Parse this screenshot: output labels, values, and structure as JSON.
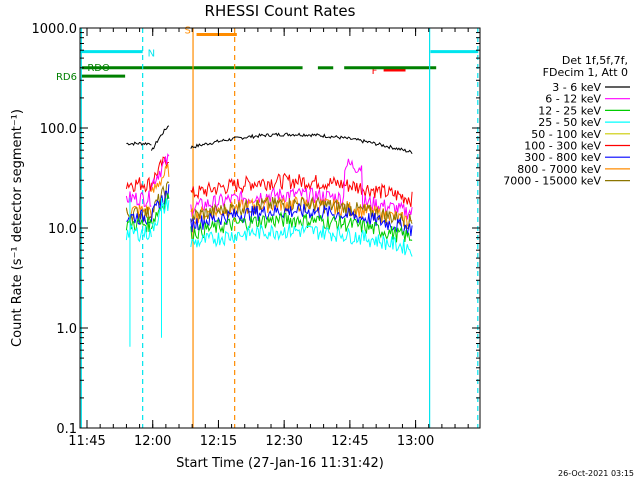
{
  "chart_data": {
    "type": "line",
    "title": "RHESSI Count Rates",
    "xlabel": "Start Time (27-Jan-16 11:31:42)",
    "ylabel": "Count Rate (s⁻¹ detector segment⁻¹)",
    "y_scale": "log",
    "ylim": [
      0.1,
      1000
    ],
    "xlim_minutes": [
      11.7,
      103.0
    ],
    "x_ticks": [
      {
        "label": "11:45",
        "minutes": 13.3
      },
      {
        "label": "12:00",
        "minutes": 28.3
      },
      {
        "label": "12:15",
        "minutes": 43.3
      },
      {
        "label": "12:30",
        "minutes": 58.3
      },
      {
        "label": "12:45",
        "minutes": 73.3
      },
      {
        "label": "13:00",
        "minutes": 88.3
      }
    ],
    "y_ticks": [
      {
        "label": "0.1",
        "value": 0.1
      },
      {
        "label": "1.0",
        "value": 1
      },
      {
        "label": "10.0",
        "value": 10
      },
      {
        "label": "100.0",
        "value": 100
      },
      {
        "label": "1000.0",
        "value": 1000
      }
    ],
    "legend": {
      "position": "right",
      "header": [
        "Det 1f,5f,7f,",
        "FDecim 1, Att 0"
      ],
      "entries": [
        {
          "label": "3 - 6 keV",
          "color": "#000000"
        },
        {
          "label": "6 - 12 keV",
          "color": "#ff00ff"
        },
        {
          "label": "12 - 25 keV",
          "color": "#00cc00"
        },
        {
          "label": "25 - 50 keV",
          "color": "#00ffff"
        },
        {
          "label": "50 - 100 keV",
          "color": "#cccc00"
        },
        {
          "label": "100 - 300 keV",
          "color": "#ff0000"
        },
        {
          "label": "300 - 800 keV",
          "color": "#0000ff"
        },
        {
          "label": "800 - 7000 keV",
          "color": "#ff8c00"
        },
        {
          "label": "7000 - 15000 keV",
          "color": "#8b7500"
        }
      ]
    },
    "segments_minutes": [
      [
        22.3,
        28.0
      ],
      [
        28.0,
        32.0
      ],
      [
        37.0,
        87.5
      ]
    ],
    "series": [
      {
        "color": "#000000",
        "levels": [
          70,
          82,
          64
        ]
      },
      {
        "color": "#ff0000",
        "levels": [
          28,
          40,
          22
        ]
      },
      {
        "color": "#ff00ff",
        "levels": [
          20,
          38,
          16
        ]
      },
      {
        "color": "#ff8c00",
        "levels": [
          15,
          30,
          13
        ]
      },
      {
        "color": "#8b7500",
        "levels": [
          14,
          20,
          13
        ]
      },
      {
        "color": "#0000ff",
        "levels": [
          13,
          18,
          11
        ]
      },
      {
        "color": "#00cc00",
        "levels": [
          11,
          16,
          9
        ]
      },
      {
        "color": "#00ffff",
        "levels": [
          9,
          14,
          7
        ]
      }
    ],
    "spikes": [
      {
        "minutes": 23.1,
        "min_value": 0.65
      },
      {
        "minutes": 30.3,
        "min_value": 0.8
      }
    ],
    "flag_bars": [
      {
        "label": "N",
        "color": "#00e5ee",
        "start": 11.7,
        "end": 26.0,
        "value": 580
      },
      {
        "label": "S",
        "color": "#ff8c00",
        "start": 38.3,
        "end": 47.5,
        "value": 860
      },
      {
        "label": "F",
        "color": "#ff0000",
        "start": 81.0,
        "end": 86.0,
        "value": 380
      },
      {
        "label": "",
        "color": "#00e5ee",
        "start": 91.7,
        "end": 102.6,
        "value": 580
      },
      {
        "label": "RDO",
        "color": "#008000",
        "start": 12.0,
        "end": 93.0,
        "value": 400,
        "gaps": [
          [
            62.5,
            66.0
          ],
          [
            69.5,
            72.0
          ]
        ]
      },
      {
        "label": "RD6",
        "color": "#008000",
        "start": 12.0,
        "end": 22.0,
        "value": 330
      }
    ],
    "vlines": [
      {
        "minutes": 12.0,
        "color": "#00e5ee",
        "style": "solid"
      },
      {
        "minutes": 26.0,
        "color": "#00e5ee",
        "style": "dashed"
      },
      {
        "minutes": 37.5,
        "color": "#ff8c00",
        "style": "solid"
      },
      {
        "minutes": 47.0,
        "color": "#ff8c00",
        "style": "dashed"
      },
      {
        "minutes": 91.5,
        "color": "#00e5ee",
        "style": "solid"
      },
      {
        "minutes": 102.5,
        "color": "#00e5ee",
        "style": "dashed"
      }
    ]
  },
  "footer": {
    "timestamp": "26-Oct-2021 03:15"
  }
}
